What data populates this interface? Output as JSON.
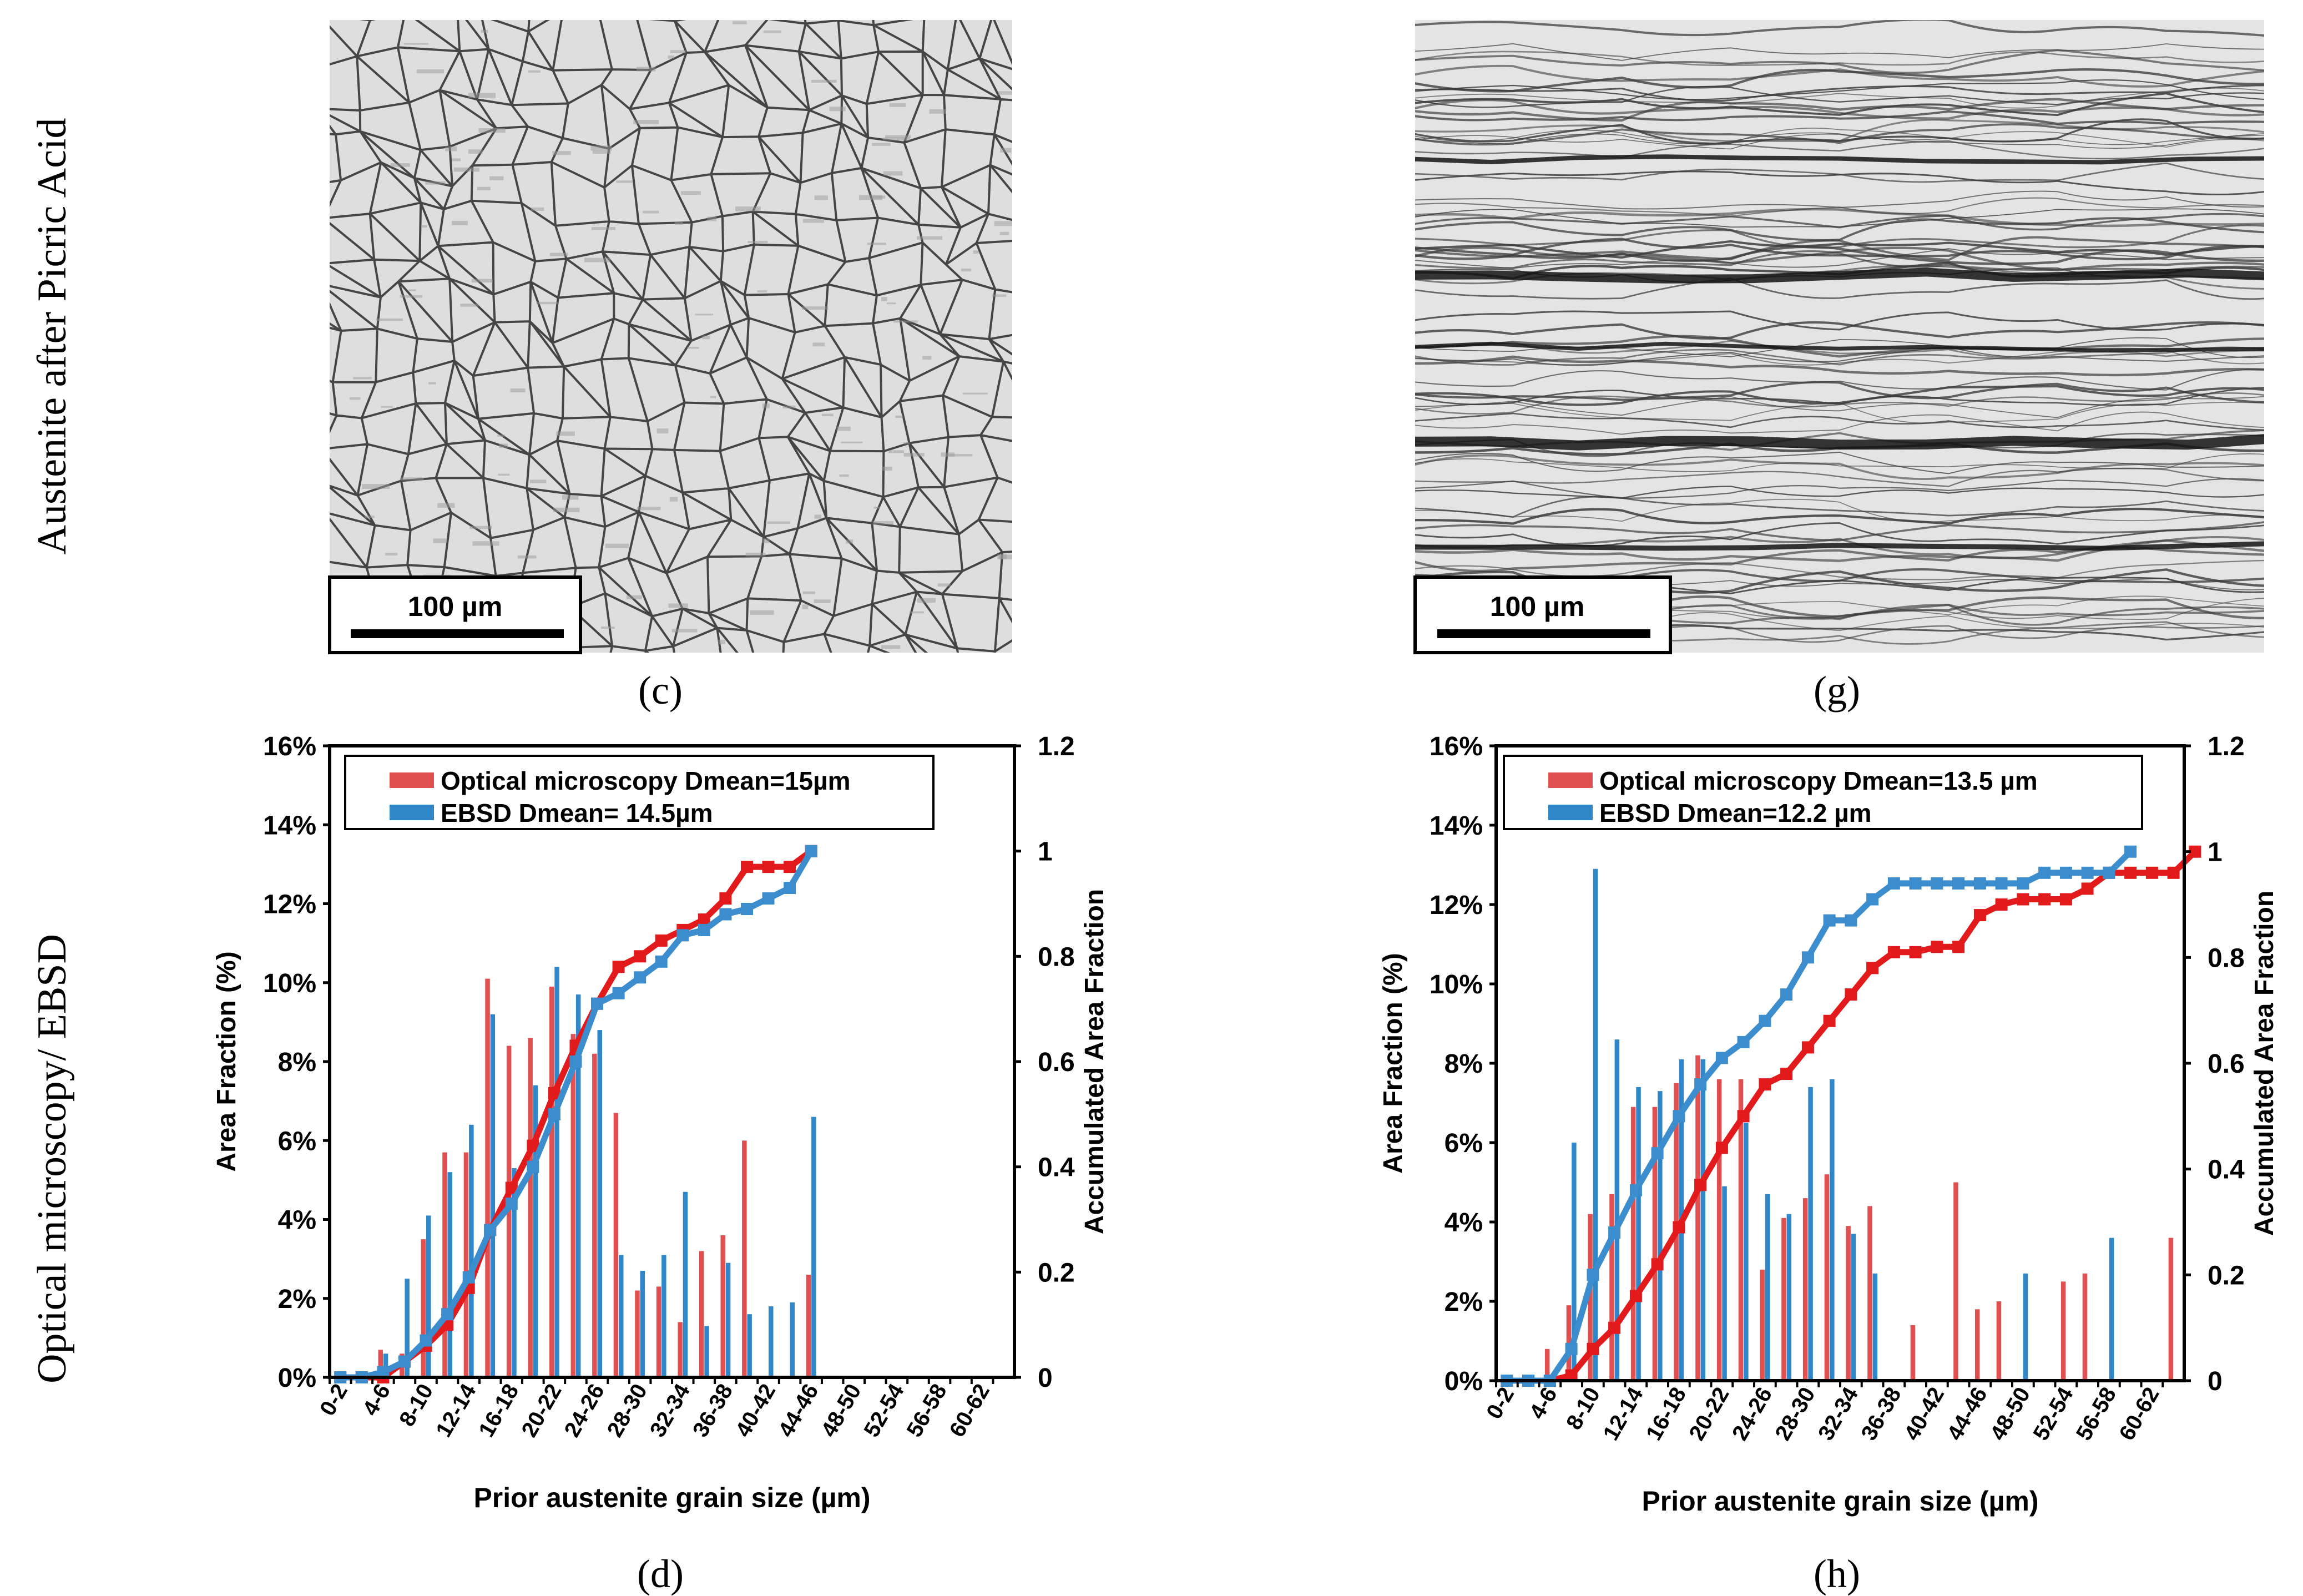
{
  "figure": {
    "row_labels": [
      "Austenite after Picric Acid",
      "Optical microscopy/ EBSD"
    ],
    "panel_labels": {
      "c": "(c)",
      "g": "(g)",
      "d": "(d)",
      "h": "(h)"
    },
    "micrographs": [
      {
        "id": "c",
        "scale_bar": "100 µm",
        "structure": "equiaxed-grains"
      },
      {
        "id": "g",
        "scale_bar": "100 µm",
        "structure": "elongated-bands"
      }
    ],
    "colors": {
      "optical": "#e05050",
      "ebsd": "#2f86c8",
      "optical_line": "#e31a1c",
      "ebsd_line": "#3c8dcd"
    }
  },
  "chart_data": [
    {
      "id": "d",
      "type": "bar",
      "xlabel": "Prior austenite grain size (µm)",
      "ylabel": "Area Fraction (%)",
      "y2label": "Accumulated Area Fraction",
      "ylim": [
        0,
        16
      ],
      "y2lim": [
        0,
        1.2
      ],
      "yticks": [
        "0%",
        "2%",
        "4%",
        "6%",
        "8%",
        "10%",
        "12%",
        "14%",
        "16%"
      ],
      "y2ticks": [
        "0",
        "0.2",
        "0.4",
        "0.6",
        "0.8",
        "1",
        "1.2"
      ],
      "categories": [
        "0-2",
        "2-4",
        "4-6",
        "6-8",
        "8-10",
        "10-12",
        "12-14",
        "14-16",
        "16-18",
        "18-20",
        "20-22",
        "22-24",
        "24-26",
        "26-28",
        "28-30",
        "30-32",
        "32-34",
        "34-36",
        "36-38",
        "38-40",
        "40-42",
        "42-44",
        "44-46",
        "46-48",
        "48-50",
        "50-52",
        "52-54",
        "54-56",
        "56-58",
        "58-60",
        "60-62",
        "62-64"
      ],
      "tick_labels": [
        "0-2",
        "4-6",
        "8-10",
        "12-14",
        "16-18",
        "20-22",
        "24-26",
        "28-30",
        "32-34",
        "36-38",
        "40-42",
        "44-46",
        "48-50",
        "52-54",
        "56-58",
        "60-62"
      ],
      "legend": [
        "Optical microscopy Dmean=15µm",
        "EBSD Dmean= 14.5µm"
      ],
      "series": [
        {
          "name": "Optical microscopy Dmean=15µm",
          "values": [
            0,
            0,
            0.7,
            0.6,
            3.5,
            5.7,
            5.7,
            10.1,
            8.4,
            8.6,
            9.9,
            8.7,
            8.2,
            6.7,
            2.2,
            2.3,
            1.4,
            3.2,
            3.6,
            6,
            0,
            0,
            2.6,
            0,
            0,
            0,
            0,
            0,
            0,
            0,
            0,
            0
          ]
        },
        {
          "name": "EBSD Dmean= 14.5µm",
          "values": [
            0,
            0,
            0.6,
            2.5,
            4.1,
            5.2,
            6.4,
            9.2,
            5.3,
            7.4,
            10.4,
            9.7,
            8.8,
            3.1,
            2.7,
            3.1,
            4.7,
            1.3,
            2.9,
            1.6,
            1.8,
            1.9,
            6.6,
            0,
            0,
            0,
            0,
            0,
            0,
            0,
            0,
            0
          ]
        }
      ],
      "cumulative": [
        {
          "name": "Optical accumulated",
          "values": [
            0,
            0,
            0,
            0.03,
            0.06,
            0.1,
            0.17,
            0.28,
            0.36,
            0.44,
            0.54,
            0.63,
            0.71,
            0.78,
            0.8,
            0.83,
            0.85,
            0.87,
            0.91,
            0.97,
            0.97,
            0.97,
            1.0
          ]
        },
        {
          "name": "EBSD accumulated",
          "values": [
            0,
            0,
            0.01,
            0.03,
            0.07,
            0.12,
            0.19,
            0.28,
            0.33,
            0.4,
            0.5,
            0.6,
            0.71,
            0.73,
            0.76,
            0.79,
            0.84,
            0.85,
            0.88,
            0.89,
            0.91,
            0.93,
            1.0
          ]
        }
      ]
    },
    {
      "id": "h",
      "type": "bar",
      "xlabel": "Prior austenite grain size (µm)",
      "ylabel": "Area Fraction (%)",
      "y2label": "Accumulated Area Fraction",
      "ylim": [
        0,
        16
      ],
      "y2lim": [
        0,
        1.2
      ],
      "yticks": [
        "0%",
        "2%",
        "4%",
        "6%",
        "8%",
        "10%",
        "12%",
        "14%",
        "16%"
      ],
      "y2ticks": [
        "0",
        "0.2",
        "0.4",
        "0.6",
        "0.8",
        "1",
        "1.2"
      ],
      "categories": [
        "0-2",
        "2-4",
        "4-6",
        "6-8",
        "8-10",
        "10-12",
        "12-14",
        "14-16",
        "16-18",
        "18-20",
        "20-22",
        "22-24",
        "24-26",
        "26-28",
        "28-30",
        "30-32",
        "32-34",
        "34-36",
        "36-38",
        "38-40",
        "40-42",
        "42-44",
        "44-46",
        "46-48",
        "48-50",
        "50-52",
        "52-54",
        "54-56",
        "56-58",
        "58-60",
        "60-62",
        "62-64"
      ],
      "tick_labels": [
        "0-2",
        "4-6",
        "8-10",
        "12-14",
        "16-18",
        "20-22",
        "24-26",
        "28-30",
        "32-34",
        "36-38",
        "40-42",
        "44-46",
        "48-50",
        "52-54",
        "56-58",
        "60-62"
      ],
      "legend": [
        "Optical microscopy Dmean=13.5 µm",
        "EBSD Dmean=12.2 µm"
      ],
      "series": [
        {
          "name": "Optical microscopy Dmean=13.5 µm",
          "values": [
            0,
            0.1,
            0.8,
            1.9,
            4.2,
            4.7,
            6.9,
            6.9,
            7.5,
            8.2,
            7.6,
            7.6,
            2.8,
            4.1,
            4.6,
            5.2,
            3.9,
            4.4,
            0,
            1.4,
            0,
            5,
            1.8,
            2,
            0,
            0,
            2.5,
            2.7,
            0,
            0,
            0,
            3.6
          ]
        },
        {
          "name": "EBSD Dmean=12.2 µm",
          "values": [
            0,
            0,
            0,
            6,
            12.9,
            8.6,
            7.4,
            7.3,
            8.1,
            8.1,
            4.9,
            6.5,
            4.7,
            4.2,
            7.4,
            7.6,
            3.7,
            2.7,
            0,
            0,
            0,
            0,
            0,
            0,
            2.7,
            0,
            0,
            0,
            3.6,
            0,
            0,
            0
          ]
        }
      ],
      "cumulative": [
        {
          "name": "Optical accumulated",
          "values": [
            0,
            0,
            0,
            0.01,
            0.06,
            0.1,
            0.16,
            0.22,
            0.29,
            0.37,
            0.44,
            0.5,
            0.56,
            0.58,
            0.63,
            0.68,
            0.73,
            0.78,
            0.81,
            0.81,
            0.82,
            0.82,
            0.88,
            0.9,
            0.91,
            0.91,
            0.91,
            0.93,
            0.96,
            0.96,
            0.96,
            0.96,
            1.0
          ]
        },
        {
          "name": "EBSD accumulated",
          "values": [
            0,
            0,
            0,
            0.06,
            0.2,
            0.28,
            0.36,
            0.43,
            0.5,
            0.56,
            0.61,
            0.64,
            0.68,
            0.73,
            0.8,
            0.87,
            0.87,
            0.91,
            0.94,
            0.94,
            0.94,
            0.94,
            0.94,
            0.94,
            0.94,
            0.96,
            0.96,
            0.96,
            0.96,
            1.0
          ]
        }
      ]
    }
  ]
}
